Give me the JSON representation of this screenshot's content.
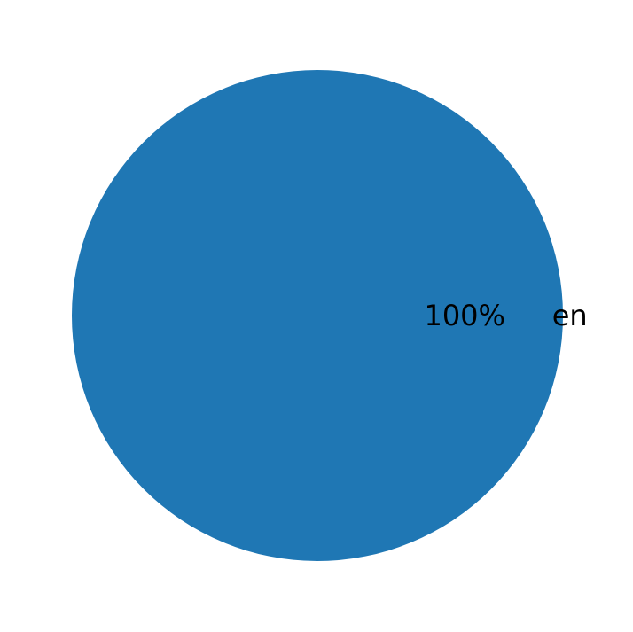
{
  "chart_data": {
    "type": "pie",
    "categories": [
      "en"
    ],
    "values": [
      100
    ],
    "data_labels": [
      "100%"
    ],
    "colors": [
      "#1f77b4"
    ],
    "title": ""
  }
}
